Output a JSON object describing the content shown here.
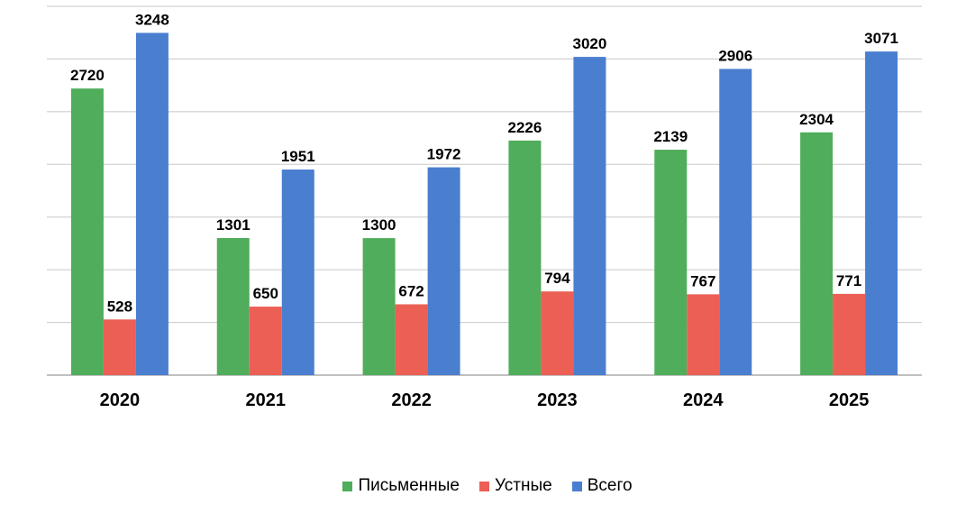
{
  "chart_data": {
    "type": "bar",
    "categories": [
      "2020",
      "2021",
      "2022",
      "2023",
      "2024",
      "2025"
    ],
    "series": [
      {
        "name": "Письменные",
        "color": "#4fad5b",
        "values": [
          2720,
          1301,
          1300,
          2226,
          2139,
          2304
        ]
      },
      {
        "name": "Устные",
        "color": "#eb5f55",
        "values": [
          528,
          650,
          672,
          794,
          767,
          771
        ]
      },
      {
        "name": "Всего",
        "color": "#4a7ecf",
        "values": [
          3248,
          1951,
          1972,
          3020,
          2906,
          3071
        ]
      }
    ],
    "ylim": [
      0,
      3500
    ],
    "grid": true,
    "legend_position": "bottom"
  }
}
